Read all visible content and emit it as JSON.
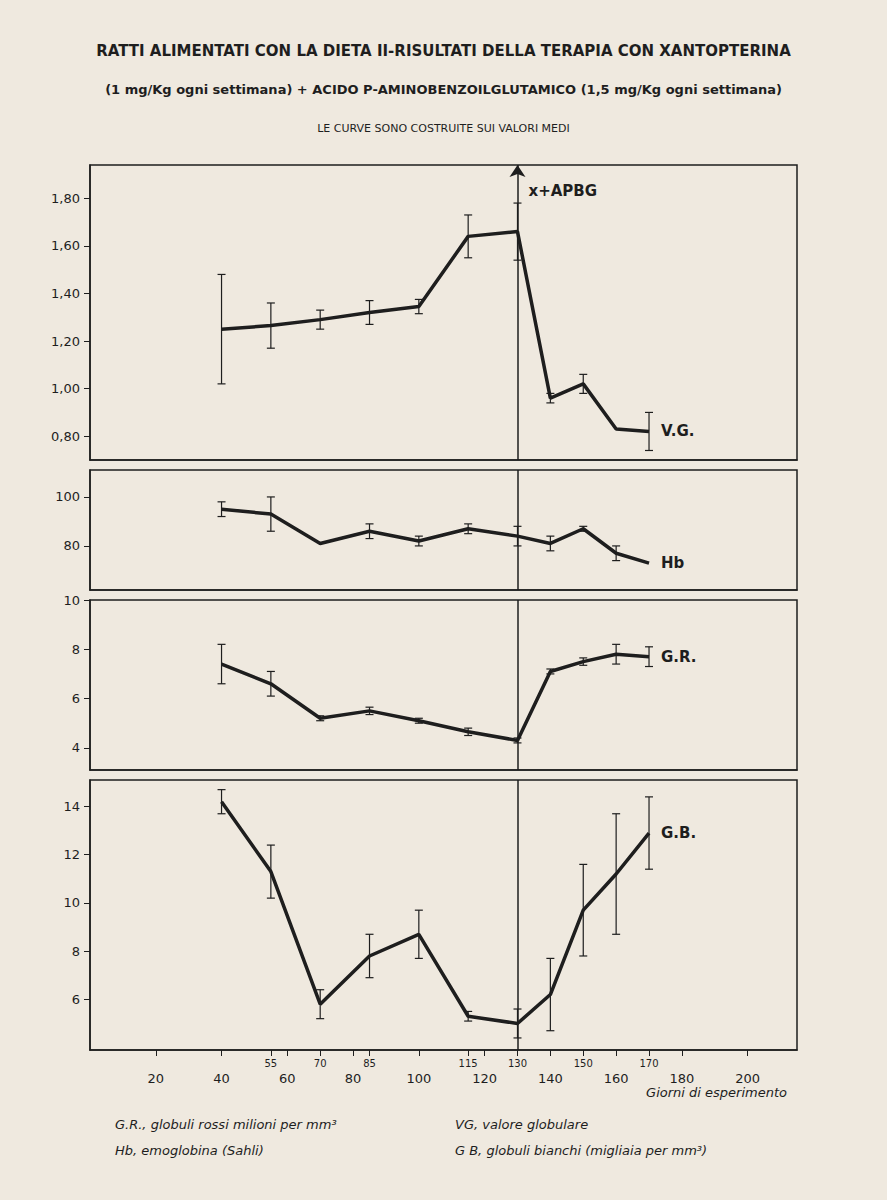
{
  "title": "RATTI ALIMENTATI CON LA DIETA II-RISULTATI DELLA TERAPIA CON XANTOPTERINA",
  "subtitle": "(1 mg/Kg ogni settimana) + ACIDO P-AMINOBENZOILGLUTAMICO (1,5 mg/Kg ogni settimana)",
  "note": "LE CURVE SONO COSTRUITE SUI VALORI MEDI",
  "footnotes": [
    "G.R., globuli rossi milioni per mm³",
    "Hb, emoglobina (Sahli)",
    "VG, valore globulare",
    "G B, globuli bianchi (migliaia per mm³)"
  ],
  "chart_data": [
    {
      "type": "line",
      "grid": false,
      "tick_labels": "y",
      "xlim": [
        0,
        215
      ],
      "ylim": [
        0.7,
        1.94
      ],
      "yticks": [
        {
          "value": 0.8,
          "label": "0,80"
        },
        {
          "value": 1.0,
          "label": "1,00"
        },
        {
          "value": 1.2,
          "label": "1,20"
        },
        {
          "value": 1.4,
          "label": "1,40"
        },
        {
          "value": 1.6,
          "label": "1,60"
        },
        {
          "value": 1.8,
          "label": "1,80"
        }
      ],
      "x": [
        40,
        55,
        70,
        85,
        100,
        115,
        130,
        140,
        150,
        160,
        170
      ],
      "treatment_start": 130,
      "annotation": "x+APBG",
      "series": [
        {
          "name": "V.G.",
          "color": "#1e1e1e",
          "marker": "none",
          "values": [
            1.25,
            1.265,
            1.29,
            1.32,
            1.345,
            1.64,
            1.66,
            0.96,
            1.02,
            0.83,
            0.82
          ],
          "errors": [
            0.23,
            0.095,
            0.04,
            0.05,
            0.03,
            0.09,
            0.12,
            0.02,
            0.04,
            null,
            0.08
          ]
        }
      ]
    },
    {
      "type": "line",
      "grid": false,
      "tick_labels": "y",
      "xlim": [
        0,
        215
      ],
      "ylim": [
        62,
        111
      ],
      "yticks": [
        80,
        100
      ],
      "x": [
        40,
        55,
        70,
        85,
        100,
        115,
        130,
        140,
        150,
        160,
        170
      ],
      "treatment_start": 130,
      "series": [
        {
          "name": "Hb",
          "color": "#1e1e1e",
          "marker": "none",
          "values": [
            95,
            93,
            81,
            86,
            82,
            87,
            84,
            81,
            87,
            77,
            73
          ],
          "errors": [
            3,
            7,
            null,
            3,
            2,
            2,
            4,
            3,
            1,
            3,
            null
          ]
        }
      ]
    },
    {
      "type": "line",
      "grid": false,
      "tick_labels": "y",
      "xlim": [
        0,
        215
      ],
      "ylim": [
        3.1,
        10
      ],
      "yticks": [
        4,
        6,
        8,
        10
      ],
      "x": [
        40,
        55,
        70,
        85,
        100,
        115,
        130,
        140,
        150,
        160,
        170
      ],
      "treatment_start": 130,
      "series": [
        {
          "name": "G.R.",
          "color": "#1e1e1e",
          "marker": "none",
          "values": [
            7.4,
            6.6,
            5.2,
            5.5,
            5.1,
            4.65,
            4.3,
            7.1,
            7.5,
            7.8,
            7.7
          ],
          "errors": [
            0.8,
            0.5,
            0.1,
            0.15,
            0.1,
            0.15,
            0.1,
            0.1,
            0.15,
            0.4,
            0.4
          ]
        }
      ]
    },
    {
      "type": "line",
      "grid": false,
      "xlim": [
        0,
        215
      ],
      "xticks": [
        20,
        40,
        55,
        60,
        70,
        80,
        85,
        100,
        115,
        120,
        130,
        140,
        150,
        160,
        170,
        180,
        200
      ],
      "xlabel": "Giorni di esperimento",
      "ylim": [
        3.9,
        15.1
      ],
      "yticks": [
        6,
        8,
        10,
        12,
        14
      ],
      "x": [
        40,
        55,
        70,
        85,
        100,
        115,
        130,
        140,
        150,
        160,
        170
      ],
      "treatment_start": 130,
      "series": [
        {
          "name": "G.B.",
          "color": "#1e1e1e",
          "marker": "none",
          "values": [
            14.2,
            11.3,
            5.8,
            7.8,
            8.7,
            5.3,
            5.0,
            6.2,
            9.7,
            11.2,
            12.9
          ],
          "errors": [
            0.5,
            1.1,
            0.6,
            0.9,
            1.0,
            0.2,
            0.6,
            1.5,
            1.9,
            2.5,
            1.5
          ]
        }
      ]
    }
  ]
}
